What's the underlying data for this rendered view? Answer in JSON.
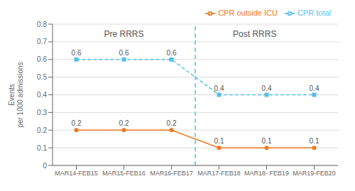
{
  "chart_data": {
    "type": "line",
    "categories": [
      "MAR14-FEB15",
      "MAR15-FEB16",
      "MAR16-FEB17",
      "MAR17-FEB18",
      "MAR18- FEB19",
      "MAR19-FEB20"
    ],
    "series": [
      {
        "name": "CPR total",
        "color": "#55BFEE",
        "line_style": "dashed",
        "marker": "square",
        "values": [
          0.6,
          0.6,
          0.6,
          0.4,
          0.4,
          0.4
        ]
      },
      {
        "name": "CPR outside ICU",
        "color": "#F07820",
        "line_style": "solid",
        "marker": "circle",
        "values": [
          0.2,
          0.2,
          0.2,
          0.1,
          0.1,
          0.1
        ]
      }
    ],
    "y_label": "Events\nper 1000 admissions",
    "ylim": [
      0,
      0.8
    ],
    "yticks": [
      0,
      0.1,
      0.2,
      0.3,
      0.4,
      0.5,
      0.6,
      0.7,
      0.8
    ],
    "grid": true,
    "legend": "upper right",
    "data_labels": true,
    "annotations": [
      {
        "text": "Pre RRRS",
        "x": 1,
        "y": 0.775
      },
      {
        "text": "Post RRRS",
        "x": 3.75,
        "y": 0.775
      },
      {
        "x": 2.5,
        "line_style": "dashed",
        "color": "#55BFEE"
      }
    ]
  }
}
